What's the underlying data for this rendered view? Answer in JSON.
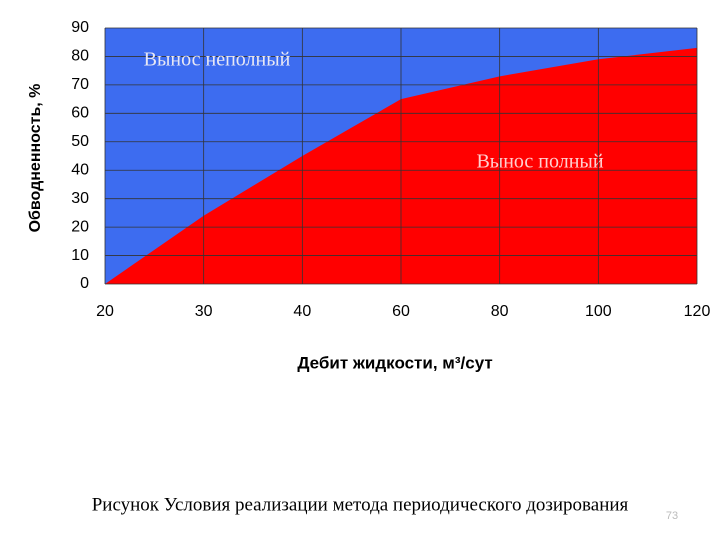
{
  "chart_data": {
    "type": "area",
    "ylabel": "Обводненность, %",
    "xlabel": "Дебит жидкости, м³/сут",
    "categories": [
      "20",
      "30",
      "40",
      "60",
      "80",
      "100",
      "120"
    ],
    "series": [
      {
        "name": "Вынос полный",
        "color": "#ff0000",
        "values": [
          0,
          24,
          45,
          65,
          73,
          79,
          83
        ]
      }
    ],
    "annotation": "Вынос неполный",
    "background_color": "#3d6cf0",
    "ylim": [
      0,
      90
    ],
    "yticks": [
      0,
      10,
      20,
      30,
      40,
      50,
      60,
      70,
      80,
      90
    ],
    "grid": true
  },
  "caption": "Рисунок  Условия реализации метода периодического дозирования",
  "page_number": "73"
}
